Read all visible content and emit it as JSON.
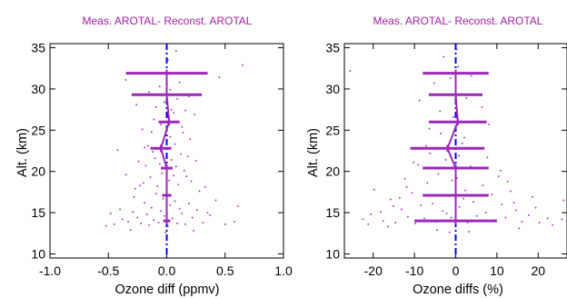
{
  "chart_data": [
    {
      "type": "scatter",
      "title": "Meas. AROTAL- Reconst. AROTAL",
      "xlabel": "Ozone diff (ppmv)",
      "ylabel": "Alt. (km)",
      "xlim": [
        -1.0,
        1.0
      ],
      "ylim": [
        9.5,
        35.5
      ],
      "xticks": [
        -1.0,
        -0.5,
        0.0,
        0.5,
        1.0
      ],
      "xtick_labels": [
        "-1.0",
        "-0.5",
        "0.0",
        "0.5",
        "1.0"
      ],
      "yticks": [
        10,
        15,
        20,
        25,
        30,
        35
      ],
      "ytick_labels": [
        "10",
        "15",
        "20",
        "25",
        "30",
        "35"
      ],
      "zero_line": {
        "x": 0,
        "style": "dash-dot",
        "color": "#0000ff"
      },
      "mean_profile": {
        "color": "#9b28b8",
        "points": [
          {
            "alt": 14.0,
            "mean": 0.0,
            "halfwidth": 0.03
          },
          {
            "alt": 17.1,
            "mean": 0.0,
            "halfwidth": 0.04
          },
          {
            "alt": 20.4,
            "mean": 0.0,
            "halfwidth": 0.05
          },
          {
            "alt": 22.8,
            "mean": -0.05,
            "halfwidth": 0.09
          },
          {
            "alt": 26.0,
            "mean": 0.02,
            "halfwidth": 0.09
          },
          {
            "alt": 29.3,
            "mean": 0.0,
            "halfwidth": 0.3
          },
          {
            "alt": 31.9,
            "mean": 0.0,
            "halfwidth": 0.35
          }
        ]
      },
      "scatter_color": "#9b28b8",
      "scatter": [
        [
          -0.45,
          13.6
        ],
        [
          -0.38,
          14.2
        ],
        [
          -0.33,
          13.9
        ],
        [
          -0.29,
          15.1
        ],
        [
          -0.25,
          14.4
        ],
        [
          -0.22,
          13.7
        ],
        [
          -0.19,
          16.2
        ],
        [
          -0.17,
          14.8
        ],
        [
          -0.15,
          13.5
        ],
        [
          -0.13,
          15.6
        ],
        [
          -0.11,
          14.1
        ],
        [
          -0.09,
          17.3
        ],
        [
          -0.07,
          13.8
        ],
        [
          -0.05,
          15.2
        ],
        [
          -0.03,
          16.7
        ],
        [
          -0.02,
          14.6
        ],
        [
          0.01,
          13.4
        ],
        [
          0.03,
          15.9
        ],
        [
          0.05,
          14.3
        ],
        [
          0.07,
          16.4
        ],
        [
          0.09,
          13.7
        ],
        [
          0.11,
          15.5
        ],
        [
          0.13,
          14.9
        ],
        [
          0.16,
          13.6
        ],
        [
          0.19,
          16.1
        ],
        [
          0.22,
          14.4
        ],
        [
          0.26,
          15.3
        ],
        [
          0.31,
          13.8
        ],
        [
          0.37,
          14.7
        ],
        [
          0.58,
          13.9
        ],
        [
          0.61,
          15.8
        ],
        [
          -0.52,
          13.4
        ],
        [
          -0.27,
          17.9
        ],
        [
          -0.2,
          18.6
        ],
        [
          -0.14,
          19.3
        ],
        [
          -0.08,
          18.2
        ],
        [
          -0.04,
          19.8
        ],
        [
          0.02,
          18.9
        ],
        [
          0.06,
          19.5
        ],
        [
          0.1,
          18.4
        ],
        [
          0.15,
          20.1
        ],
        [
          0.21,
          18.8
        ],
        [
          -0.24,
          21.2
        ],
        [
          -0.18,
          20.7
        ],
        [
          -0.1,
          21.6
        ],
        [
          -0.06,
          20.9
        ],
        [
          0.04,
          21.4
        ],
        [
          0.08,
          20.6
        ],
        [
          0.12,
          22.1
        ],
        [
          0.18,
          21.8
        ],
        [
          -0.42,
          22.6
        ],
        [
          -0.16,
          23.1
        ],
        [
          -0.12,
          22.4
        ],
        [
          -0.03,
          23.6
        ],
        [
          0.03,
          24.2
        ],
        [
          0.07,
          23.3
        ],
        [
          0.14,
          24.7
        ],
        [
          0.2,
          23.9
        ],
        [
          -0.21,
          25.1
        ],
        [
          -0.11,
          26.3
        ],
        [
          -0.05,
          25.7
        ],
        [
          0.02,
          26.6
        ],
        [
          0.06,
          27.1
        ],
        [
          0.13,
          25.4
        ],
        [
          0.24,
          26.9
        ],
        [
          -0.09,
          27.8
        ],
        [
          -0.02,
          28.4
        ],
        [
          0.04,
          27.5
        ],
        [
          0.09,
          28.8
        ],
        [
          -0.15,
          29.6
        ],
        [
          -0.06,
          30.3
        ],
        [
          0.03,
          29.9
        ],
        [
          0.11,
          30.8
        ],
        [
          0.45,
          31.4
        ],
        [
          0.65,
          32.9
        ],
        [
          -0.35,
          31.1
        ],
        [
          0.01,
          33.5
        ],
        [
          0.08,
          34.6
        ],
        [
          -0.28,
          16.9
        ],
        [
          0.28,
          17.6
        ],
        [
          -0.35,
          19.6
        ],
        [
          0.33,
          18.1
        ],
        [
          -0.4,
          15.4
        ],
        [
          0.42,
          16.5
        ],
        [
          -0.48,
          14.9
        ],
        [
          0.5,
          13.6
        ],
        [
          -0.31,
          12.9
        ],
        [
          0.23,
          12.8
        ],
        [
          -0.01,
          12.6
        ],
        [
          0.35,
          15.0
        ],
        [
          -0.23,
          18.3
        ],
        [
          0.17,
          19.4
        ],
        [
          -0.19,
          22.9
        ],
        [
          0.25,
          21.3
        ],
        [
          -0.13,
          24.8
        ],
        [
          0.16,
          27.4
        ],
        [
          -0.26,
          28.1
        ],
        [
          0.19,
          29.1
        ]
      ]
    },
    {
      "type": "scatter",
      "title": "Meas. AROTAL- Reconst. AROTAL",
      "xlabel": "Ozone diffs (%)",
      "ylabel": "Alt. (km)",
      "xlim": [
        -27,
        27
      ],
      "ylim": [
        9.5,
        35.5
      ],
      "xticks": [
        -20,
        -10,
        0,
        10,
        20
      ],
      "xtick_labels": [
        "-20",
        "-10",
        "0",
        "10",
        "20"
      ],
      "yticks": [
        10,
        15,
        20,
        25,
        30,
        35
      ],
      "ytick_labels": [
        "10",
        "15",
        "20",
        "25",
        "30",
        "35"
      ],
      "zero_line": {
        "x": 0,
        "style": "dash-dot",
        "color": "#0000ff"
      },
      "mean_profile": {
        "color": "#9b28b8",
        "points": [
          {
            "alt": 14.0,
            "mean": 0.0,
            "halfwidth": 10.0
          },
          {
            "alt": 17.1,
            "mean": 0.0,
            "halfwidth": 8.0
          },
          {
            "alt": 20.4,
            "mean": 0.0,
            "halfwidth": 8.0
          },
          {
            "alt": 22.8,
            "mean": -2.0,
            "halfwidth": 9.0
          },
          {
            "alt": 26.0,
            "mean": 0.5,
            "halfwidth": 7.0
          },
          {
            "alt": 29.3,
            "mean": 0.0,
            "halfwidth": 6.5
          },
          {
            "alt": 31.9,
            "mean": 0.0,
            "halfwidth": 8.0
          }
        ]
      },
      "scatter_color": "#9b28b8",
      "scatter": [
        [
          -25.6,
          32.2
        ],
        [
          -22.5,
          14.2
        ],
        [
          -21.2,
          13.6
        ],
        [
          -19.8,
          17.8
        ],
        [
          -17.6,
          14.0
        ],
        [
          -15.8,
          16.6
        ],
        [
          -14.6,
          13.8
        ],
        [
          -13.1,
          15.4
        ],
        [
          -12.3,
          19.1
        ],
        [
          -11.6,
          14.5
        ],
        [
          -10.6,
          17.4
        ],
        [
          -9.8,
          13.7
        ],
        [
          -9.1,
          20.8
        ],
        [
          -8.4,
          15.9
        ],
        [
          -7.6,
          14.3
        ],
        [
          -6.9,
          18.6
        ],
        [
          -6.2,
          22.2
        ],
        [
          -5.6,
          16.1
        ],
        [
          -4.9,
          13.9
        ],
        [
          -4.2,
          19.7
        ],
        [
          -3.6,
          24.6
        ],
        [
          -3.1,
          15.2
        ],
        [
          -2.4,
          21.4
        ],
        [
          -1.8,
          17.0
        ],
        [
          -1.1,
          14.4
        ],
        [
          -0.6,
          26.6
        ],
        [
          0.3,
          19.2
        ],
        [
          0.9,
          15.7
        ],
        [
          1.6,
          23.4
        ],
        [
          2.3,
          17.7
        ],
        [
          2.9,
          13.8
        ],
        [
          3.6,
          20.6
        ],
        [
          4.3,
          16.3
        ],
        [
          5.1,
          14.6
        ],
        [
          5.8,
          22.8
        ],
        [
          6.6,
          18.3
        ],
        [
          7.3,
          15.0
        ],
        [
          8.1,
          25.7
        ],
        [
          8.8,
          17.2
        ],
        [
          9.6,
          14.1
        ],
        [
          10.4,
          19.4
        ],
        [
          11.2,
          16.0
        ],
        [
          12.1,
          14.4
        ],
        [
          13.3,
          17.6
        ],
        [
          14.6,
          15.3
        ],
        [
          16.1,
          13.9
        ],
        [
          17.7,
          14.7
        ],
        [
          20.3,
          13.8
        ],
        [
          22.3,
          14.3
        ],
        [
          23.5,
          13.5
        ],
        [
          26.2,
          16.5
        ],
        [
          25.8,
          14.2
        ],
        [
          -8.8,
          28.6
        ],
        [
          -5.2,
          30.7
        ],
        [
          -2.9,
          33.9
        ],
        [
          1.2,
          29.4
        ],
        [
          3.8,
          31.6
        ],
        [
          6.4,
          27.8
        ],
        [
          -6.4,
          25.2
        ],
        [
          -3.8,
          27.3
        ],
        [
          4.6,
          26.1
        ],
        [
          2.1,
          24.1
        ],
        [
          -7.2,
          23.1
        ],
        [
          7.7,
          21.7
        ],
        [
          -10.2,
          21.1
        ],
        [
          10.9,
          20.1
        ],
        [
          -11.9,
          18.1
        ],
        [
          12.6,
          18.8
        ],
        [
          -13.6,
          16.8
        ],
        [
          14.1,
          16.2
        ],
        [
          -15.1,
          15.8
        ],
        [
          15.4,
          13.1
        ],
        [
          -16.4,
          13.3
        ],
        [
          -18.2,
          15.1
        ],
        [
          18.6,
          16.9
        ],
        [
          19.4,
          15.6
        ],
        [
          -20.6,
          14.8
        ],
        [
          -4.5,
          12.9
        ],
        [
          3.2,
          12.7
        ],
        [
          -1.5,
          12.6
        ],
        [
          0.8,
          21.9
        ],
        [
          -0.9,
          18.9
        ],
        [
          1.9,
          16.7
        ],
        [
          -2.2,
          14.9
        ],
        [
          0.2,
          34.8
        ],
        [
          -1.3,
          31.3
        ],
        [
          0.6,
          32.7
        ],
        [
          2.6,
          28.9
        ]
      ]
    }
  ]
}
